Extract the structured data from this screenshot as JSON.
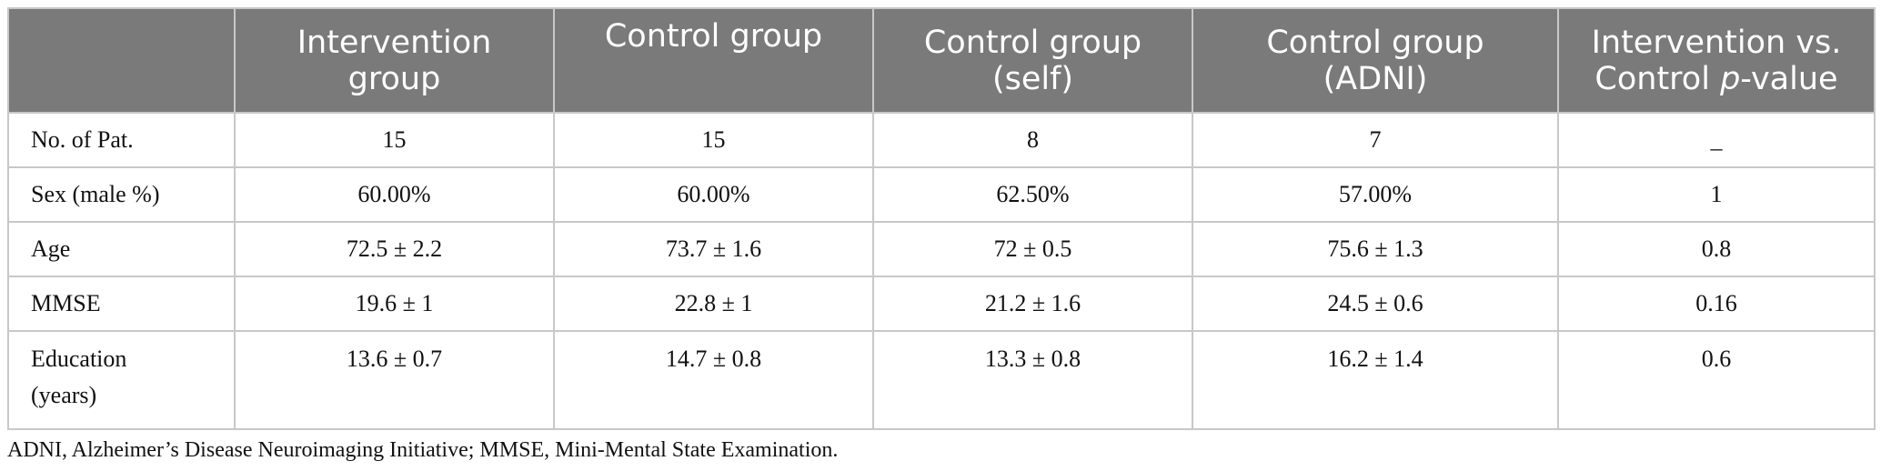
{
  "table": {
    "header": {
      "blank": "",
      "col1": [
        "Intervention",
        "group"
      ],
      "col2": [
        "Control group"
      ],
      "col3": [
        "Control group",
        "(self)"
      ],
      "col4": [
        "Control group",
        "(ADNI)"
      ],
      "col5": [
        "Intervention vs.",
        "Control ",
        "p",
        "-value"
      ]
    },
    "rows": [
      {
        "label": [
          "No. of Pat."
        ],
        "values": [
          "15",
          "15",
          "8",
          "7",
          "_"
        ]
      },
      {
        "label": [
          "Sex (male %)"
        ],
        "values": [
          "60.00%",
          "60.00%",
          "62.50%",
          "57.00%",
          "1"
        ]
      },
      {
        "label": [
          "Age"
        ],
        "values": [
          "72.5 ± 2.2",
          "73.7 ± 1.6",
          "72 ± 0.5",
          "75.6 ± 1.3",
          "0.8"
        ]
      },
      {
        "label": [
          "MMSE"
        ],
        "values": [
          "19.6 ± 1",
          "22.8 ± 1",
          "21.2 ± 1.6",
          "24.5 ± 0.6",
          "0.16"
        ]
      },
      {
        "label": [
          "Education",
          "(years)"
        ],
        "values": [
          "13.6 ± 0.7",
          "14.7 ± 0.8",
          "13.3 ± 0.8",
          "16.2 ± 1.4",
          "0.6"
        ]
      }
    ]
  },
  "footnote": "ADNI, Alzheimer’s Disease Neuroimaging Initiative; MMSE, Mini-Mental State Examination."
}
